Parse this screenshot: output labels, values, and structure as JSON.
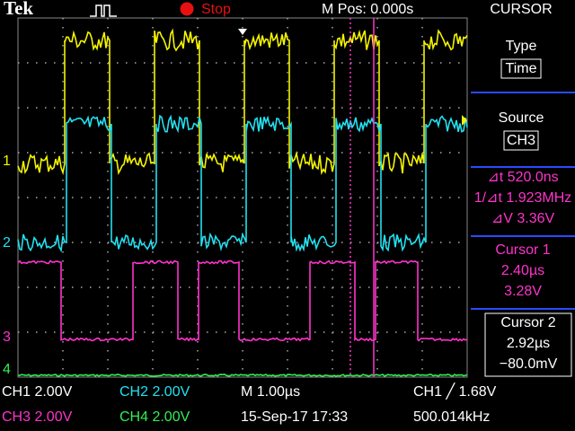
{
  "header": {
    "brand": "Tek",
    "state": "Stop",
    "position": "M Pos: 0.000s",
    "menu": "CURSOR"
  },
  "side_menu": {
    "type_label": "Type",
    "type_value": "Time",
    "source_label": "Source",
    "source_value": "CH3",
    "delta_t": "⊿t 520.0ns",
    "inverse_delta_t": "1/⊿t 1.923MHz",
    "delta_v": "⊿V 3.36V",
    "cursor1": {
      "title": "Cursor 1",
      "time": "2.40µs",
      "volts": "3.28V"
    },
    "cursor2": {
      "title": "Cursor 2",
      "time": "2.92µs",
      "volts": "−80.0mV"
    }
  },
  "channel_markers": [
    "1",
    "2",
    "3",
    "4"
  ],
  "status": {
    "ch1": "CH1 2.00V",
    "ch2": "CH2 2.00V",
    "timebase": "M 1.00µs",
    "trigger": "CH1 ╱ 1.68V",
    "ch3": "CH3 2.00V",
    "ch4": "CH4 2.00V",
    "datetime": "15-Sep-17 17:33",
    "frequency": "500.014kHz"
  }
}
